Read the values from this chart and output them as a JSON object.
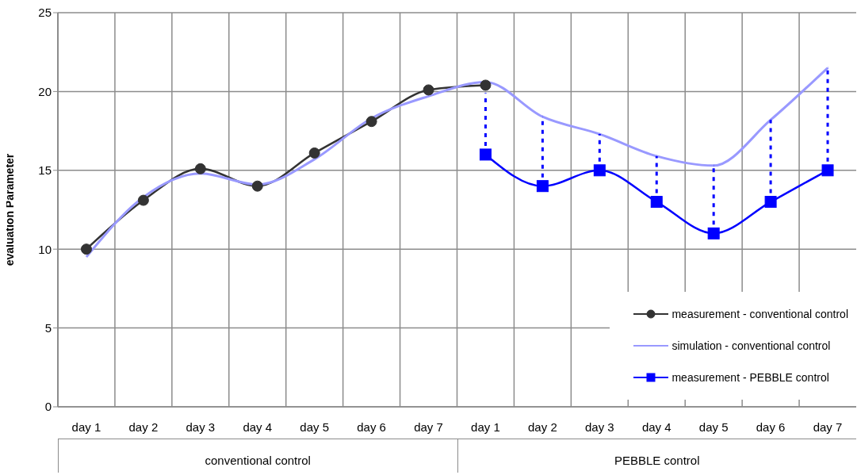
{
  "chart_data": {
    "type": "line",
    "ylabel": "evaluation Parameter",
    "categories": [
      "day 1",
      "day 2",
      "day 3",
      "day 4",
      "day 5",
      "day 6",
      "day 7",
      "day 1",
      "day 2",
      "day 3",
      "day 4",
      "day 5",
      "day 6",
      "day 7"
    ],
    "series": [
      {
        "name": "measurement - conventional control",
        "color": "#333333",
        "marker": "circle",
        "values": [
          10,
          13.1,
          15.1,
          14,
          16.1,
          18.1,
          20.1,
          20.4,
          null,
          null,
          null,
          null,
          null,
          null
        ]
      },
      {
        "name": "simulation - conventional control",
        "color": "#9999ff",
        "marker": "none",
        "values": [
          9.5,
          13.3,
          14.8,
          14.1,
          15.7,
          18.3,
          19.7,
          20.6,
          18.4,
          17.3,
          15.9,
          15.3,
          18.2,
          21.5
        ]
      },
      {
        "name": "measurement - PEBBLE control",
        "color": "#0000ff",
        "marker": "square",
        "values": [
          null,
          null,
          null,
          null,
          null,
          null,
          null,
          16,
          14,
          15,
          13,
          11,
          13,
          15
        ],
        "errors": [
          null,
          null,
          null,
          null,
          null,
          null,
          null,
          [
            16,
            19.9
          ],
          [
            14,
            18.4
          ],
          [
            15,
            17.3
          ],
          [
            13,
            15.9
          ],
          [
            11,
            15.3
          ],
          [
            13,
            18.2
          ],
          [
            15,
            21.5
          ]
        ]
      }
    ],
    "ylim": [
      0,
      25
    ],
    "yticks": [
      0,
      5,
      10,
      15,
      20,
      25
    ],
    "grid": true,
    "legend": "bottom right",
    "annotations": [
      "conventional control",
      "PEBBLE control"
    ]
  }
}
